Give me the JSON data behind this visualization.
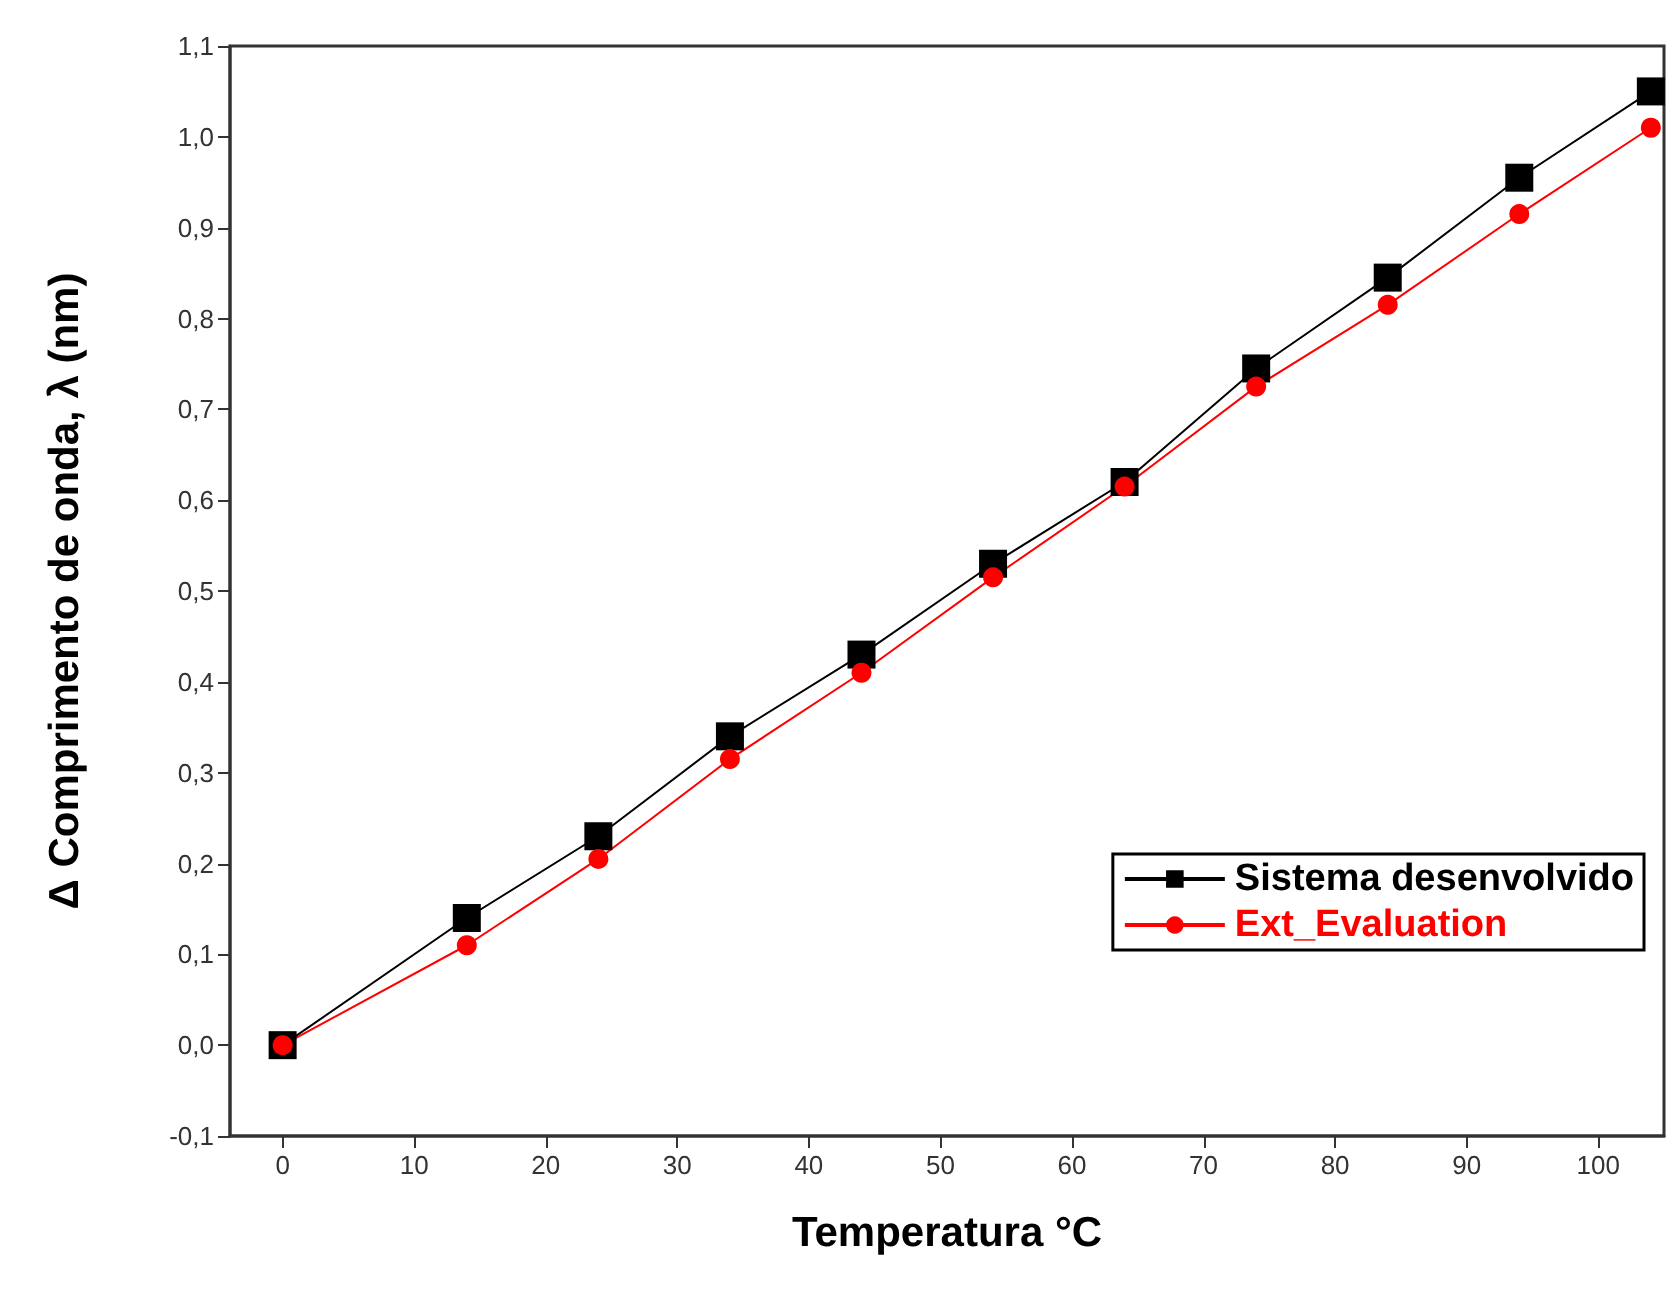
{
  "chart_data": {
    "type": "line",
    "xlabel": "Temperatura °C",
    "ylabel": "Δ Comprimento de onda, λ (nm)",
    "x": [
      0,
      14,
      24,
      34,
      44,
      54,
      64,
      74,
      84,
      94,
      104
    ],
    "series": [
      {
        "name": "Sistema desenvolvido",
        "color": "#000000",
        "marker": "square",
        "values": [
          0,
          0.14,
          0.23,
          0.34,
          0.43,
          0.53,
          0.62,
          0.745,
          0.845,
          0.955,
          1.05
        ]
      },
      {
        "name": "Ext_Evaluation",
        "color": "#ff0000",
        "marker": "circle",
        "values": [
          0,
          0.11,
          0.205,
          0.315,
          0.41,
          0.515,
          0.615,
          0.725,
          0.815,
          0.915,
          1.01
        ]
      }
    ],
    "xlim": [
      -4,
      105
    ],
    "xticks": [
      0,
      10,
      20,
      30,
      40,
      50,
      60,
      70,
      80,
      90,
      100
    ],
    "ylim": [
      -0.1,
      1.1
    ],
    "yticks": [
      {
        "value": -0.1,
        "label": "-0,1"
      },
      {
        "value": 0,
        "label": "0,0"
      },
      {
        "value": 0.1,
        "label": "0,1"
      },
      {
        "value": 0.2,
        "label": "0,2"
      },
      {
        "value": 0.3,
        "label": "0,3"
      },
      {
        "value": 0.4,
        "label": "0,4"
      },
      {
        "value": 0.5,
        "label": "0,5"
      },
      {
        "value": 0.6,
        "label": "0,6"
      },
      {
        "value": 0.7,
        "label": "0,7"
      },
      {
        "value": 0.8,
        "label": "0,8"
      },
      {
        "value": 0.9,
        "label": "0,9"
      },
      {
        "value": 1.0,
        "label": "1,0"
      },
      {
        "value": 1.1,
        "label": "1,1"
      }
    ],
    "grid": false,
    "legend": "bottom right",
    "line_style": "solid"
  }
}
